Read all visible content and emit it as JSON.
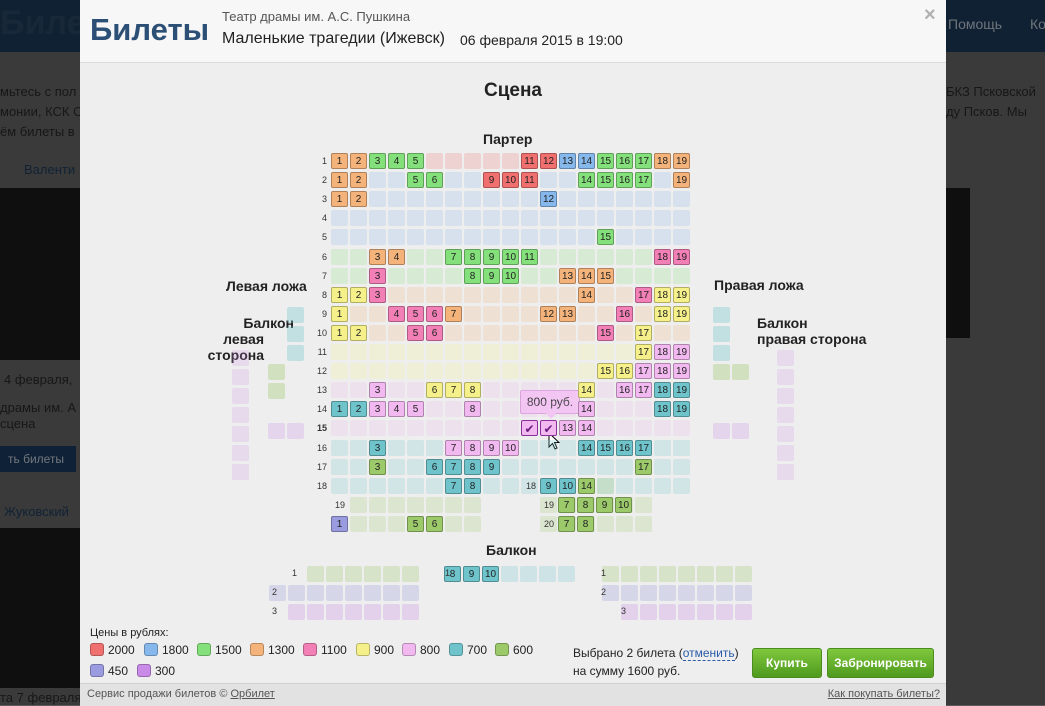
{
  "background": {
    "logo": "Билеты",
    "nav_help": "Помощь",
    "nav_more": "Ко",
    "lines": [
      "мьтесь с пол",
      "монии, КСК С",
      "ём билеты в",
      "Валенти",
      "4 февраля,",
      "драмы им. А",
      "сцена",
      "ть билеты",
      "Жуковский",
      "та 7 февраля",
      "БКЗ Псковской",
      "ду Псков. Мы"
    ]
  },
  "modal": {
    "title": "Билеты",
    "theatre": "Театр драмы им. А.С. Пушкина",
    "show": "Маленькие трагедии (Ижевск)",
    "date": "06 февраля 2015 в 19:00",
    "close": "×",
    "stage": "Сцена",
    "sections": {
      "parter": "Партер",
      "left_box": "Левая ложа",
      "right_box": "Правая ложа",
      "balcony_left_1": "Балкон",
      "balcony_left_2": "левая сторона",
      "balcony_right_1": "Балкон",
      "balcony_right_2": "правая сторона",
      "balcony": "Балкон"
    },
    "tooltip": "800 руб.",
    "legend": {
      "title": "Цены в рублях:",
      "items": [
        {
          "price": "2000",
          "color": "#f07070"
        },
        {
          "price": "1800",
          "color": "#86b8ec"
        },
        {
          "price": "1500",
          "color": "#84e07a"
        },
        {
          "price": "1300",
          "color": "#f4b37a"
        },
        {
          "price": "1100",
          "color": "#f27fb6"
        },
        {
          "price": "900",
          "color": "#f5f08a"
        },
        {
          "price": "800",
          "color": "#f2b8f0"
        },
        {
          "price": "700",
          "color": "#6fc4cc"
        },
        {
          "price": "600",
          "color": "#9cc96a"
        },
        {
          "price": "450",
          "color": "#9b9be0"
        },
        {
          "price": "300",
          "color": "#c98ae8"
        }
      ]
    },
    "selection": {
      "text_before": "Выбрано 2 билета (",
      "cancel": "отменить",
      "text_after": ")",
      "total": "на сумму 1600 руб."
    },
    "buttons": {
      "buy": "Купить",
      "book": "Забронировать"
    },
    "footer": {
      "service": "Сервис продажи билетов ©",
      "brand": "Орбилет",
      "how": "Как покупать билеты?"
    },
    "row_labels": {
      "parter": [
        "1",
        "2",
        "3",
        "4",
        "5",
        "6",
        "7",
        "8",
        "9",
        "10",
        "11",
        "12",
        "13",
        "14",
        "15",
        "16",
        "17",
        "18"
      ],
      "parter_extra": [
        "19",
        "20"
      ],
      "right_block": [
        "18",
        "19",
        "20"
      ],
      "balcony": [
        "1",
        "2",
        "3"
      ]
    },
    "seats": {
      "parter_free": [
        {
          "row": "1",
          "seat": "1",
          "price": "1300"
        },
        {
          "row": "1",
          "seat": "2",
          "price": "1300"
        },
        {
          "row": "1",
          "seat": "3",
          "price": "1500"
        },
        {
          "row": "1",
          "seat": "4",
          "price": "1500"
        },
        {
          "row": "1",
          "seat": "5",
          "price": "1500"
        },
        {
          "row": "1",
          "seat": "11",
          "price": "2000"
        },
        {
          "row": "1",
          "seat": "12",
          "price": "2000"
        },
        {
          "row": "1",
          "seat": "13",
          "price": "1800"
        },
        {
          "row": "1",
          "seat": "14",
          "price": "1800"
        },
        {
          "row": "1",
          "seat": "15",
          "price": "1500"
        },
        {
          "row": "1",
          "seat": "16",
          "price": "1500"
        },
        {
          "row": "1",
          "seat": "17",
          "price": "1500"
        },
        {
          "row": "1",
          "seat": "18",
          "price": "1300"
        },
        {
          "row": "1",
          "seat": "19",
          "price": "1300"
        },
        {
          "row": "2",
          "seat": "1",
          "price": "1300"
        },
        {
          "row": "2",
          "seat": "2",
          "price": "1300"
        },
        {
          "row": "2",
          "seat": "5",
          "price": "1500"
        },
        {
          "row": "2",
          "seat": "6",
          "price": "1500"
        },
        {
          "row": "2",
          "seat": "9",
          "price": "2000"
        },
        {
          "row": "2",
          "seat": "10",
          "price": "2000"
        },
        {
          "row": "2",
          "seat": "11",
          "price": "2000"
        },
        {
          "row": "2",
          "seat": "14",
          "price": "1500"
        },
        {
          "row": "2",
          "seat": "15",
          "price": "1500"
        },
        {
          "row": "2",
          "seat": "16",
          "price": "1500"
        },
        {
          "row": "2",
          "seat": "17",
          "price": "1500"
        },
        {
          "row": "2",
          "seat": "19",
          "price": "1300"
        },
        {
          "row": "3",
          "seat": "1",
          "price": "1300"
        },
        {
          "row": "3",
          "seat": "2",
          "price": "1300"
        },
        {
          "row": "3",
          "seat": "12",
          "price": "1800"
        },
        {
          "row": "5",
          "seat": "15",
          "price": "1500"
        },
        {
          "row": "6",
          "seat": "3",
          "price": "1300"
        },
        {
          "row": "6",
          "seat": "4",
          "price": "1300"
        },
        {
          "row": "6",
          "seat": "7",
          "price": "1500"
        },
        {
          "row": "6",
          "seat": "8",
          "price": "1500"
        },
        {
          "row": "6",
          "seat": "9",
          "price": "1500"
        },
        {
          "row": "6",
          "seat": "10",
          "price": "1500"
        },
        {
          "row": "6",
          "seat": "11",
          "price": "1500"
        },
        {
          "row": "6",
          "seat": "18",
          "price": "1100"
        },
        {
          "row": "6",
          "seat": "19",
          "price": "1100"
        },
        {
          "row": "7",
          "seat": "3",
          "price": "1100"
        },
        {
          "row": "7",
          "seat": "8",
          "price": "1500"
        },
        {
          "row": "7",
          "seat": "9",
          "price": "1500"
        },
        {
          "row": "7",
          "seat": "10",
          "price": "1500"
        },
        {
          "row": "7",
          "seat": "13",
          "price": "1300"
        },
        {
          "row": "7",
          "seat": "14",
          "price": "1300"
        },
        {
          "row": "7",
          "seat": "15",
          "price": "1300"
        },
        {
          "row": "8",
          "seat": "1",
          "price": "900"
        },
        {
          "row": "8",
          "seat": "2",
          "price": "900"
        },
        {
          "row": "8",
          "seat": "3",
          "price": "1100"
        },
        {
          "row": "8",
          "seat": "14",
          "price": "1300"
        },
        {
          "row": "8",
          "seat": "17",
          "price": "1100"
        },
        {
          "row": "8",
          "seat": "18",
          "price": "900"
        },
        {
          "row": "8",
          "seat": "19",
          "price": "900"
        },
        {
          "row": "9",
          "seat": "1",
          "price": "900"
        },
        {
          "row": "9",
          "seat": "4",
          "price": "1100"
        },
        {
          "row": "9",
          "seat": "5",
          "price": "1100"
        },
        {
          "row": "9",
          "seat": "6",
          "price": "1100"
        },
        {
          "row": "9",
          "seat": "7",
          "price": "1300"
        },
        {
          "row": "9",
          "seat": "12",
          "price": "1300"
        },
        {
          "row": "9",
          "seat": "13",
          "price": "1300"
        },
        {
          "row": "9",
          "seat": "16",
          "price": "1100"
        },
        {
          "row": "9",
          "seat": "18",
          "price": "900"
        },
        {
          "row": "9",
          "seat": "19",
          "price": "900"
        },
        {
          "row": "10",
          "seat": "1",
          "price": "900"
        },
        {
          "row": "10",
          "seat": "2",
          "price": "900"
        },
        {
          "row": "10",
          "seat": "5",
          "price": "1100"
        },
        {
          "row": "10",
          "seat": "6",
          "price": "1100"
        },
        {
          "row": "10",
          "seat": "15",
          "price": "1100"
        },
        {
          "row": "10",
          "seat": "17",
          "price": "900"
        },
        {
          "row": "11",
          "seat": "17",
          "price": "900"
        },
        {
          "row": "11",
          "seat": "18",
          "price": "800"
        },
        {
          "row": "11",
          "seat": "19",
          "price": "800"
        },
        {
          "row": "12",
          "seat": "15",
          "price": "900"
        },
        {
          "row": "12",
          "seat": "16",
          "price": "900"
        },
        {
          "row": "12",
          "seat": "17",
          "price": "800"
        },
        {
          "row": "12",
          "seat": "18",
          "price": "800"
        },
        {
          "row": "12",
          "seat": "19",
          "price": "800"
        },
        {
          "row": "13",
          "seat": "3",
          "price": "800"
        },
        {
          "row": "13",
          "seat": "6",
          "price": "900"
        },
        {
          "row": "13",
          "seat": "7",
          "price": "900"
        },
        {
          "row": "13",
          "seat": "8",
          "price": "900"
        },
        {
          "row": "13",
          "seat": "14",
          "price": "900"
        },
        {
          "row": "13",
          "seat": "16",
          "price": "800"
        },
        {
          "row": "13",
          "seat": "17",
          "price": "800"
        },
        {
          "row": "13",
          "seat": "18",
          "price": "700"
        },
        {
          "row": "13",
          "seat": "19",
          "price": "700"
        },
        {
          "row": "14",
          "seat": "1",
          "price": "700"
        },
        {
          "row": "14",
          "seat": "2",
          "price": "700"
        },
        {
          "row": "14",
          "seat": "3",
          "price": "800"
        },
        {
          "row": "14",
          "seat": "4",
          "price": "800"
        },
        {
          "row": "14",
          "seat": "5",
          "price": "800"
        },
        {
          "row": "14",
          "seat": "8",
          "price": "800"
        },
        {
          "row": "14",
          "seat": "14",
          "price": "800"
        },
        {
          "row": "14",
          "seat": "18",
          "price": "700"
        },
        {
          "row": "14",
          "seat": "19",
          "price": "700"
        },
        {
          "row": "15",
          "seat": "13",
          "price": "800"
        },
        {
          "row": "15",
          "seat": "14",
          "price": "800"
        },
        {
          "row": "16",
          "seat": "3",
          "price": "700"
        },
        {
          "row": "16",
          "seat": "7",
          "price": "800"
        },
        {
          "row": "16",
          "seat": "8",
          "price": "800"
        },
        {
          "row": "16",
          "seat": "9",
          "price": "800"
        },
        {
          "row": "16",
          "seat": "10",
          "price": "800"
        },
        {
          "row": "16",
          "seat": "14",
          "price": "700"
        },
        {
          "row": "16",
          "seat": "15",
          "price": "700"
        },
        {
          "row": "16",
          "seat": "16",
          "price": "700"
        },
        {
          "row": "16",
          "seat": "17",
          "price": "700"
        },
        {
          "row": "17",
          "seat": "3",
          "price": "600"
        },
        {
          "row": "17",
          "seat": "6",
          "price": "700"
        },
        {
          "row": "17",
          "seat": "7",
          "price": "700"
        },
        {
          "row": "17",
          "seat": "8",
          "price": "700"
        },
        {
          "row": "17",
          "seat": "9",
          "price": "700"
        },
        {
          "row": "17",
          "seat": "17",
          "price": "600"
        },
        {
          "row": "18",
          "seat": "7",
          "price": "700"
        },
        {
          "row": "18",
          "seat": "8",
          "price": "700"
        },
        {
          "row": "18",
          "seat": "13",
          "price": "600"
        },
        {
          "row": "18",
          "seat": "14",
          "price": "600"
        },
        {
          "row": "20",
          "seat": "1",
          "price": "450"
        },
        {
          "row": "20",
          "seat": "5",
          "price": "600"
        },
        {
          "row": "20",
          "seat": "6",
          "price": "600"
        }
      ],
      "right_block_free": [
        {
          "row": "18",
          "seat": "9",
          "price": "700"
        },
        {
          "row": "18",
          "seat": "10",
          "price": "700"
        },
        {
          "row": "19",
          "seat": "7",
          "price": "600"
        },
        {
          "row": "19",
          "seat": "8",
          "price": "600"
        },
        {
          "row": "19",
          "seat": "9",
          "price": "600"
        },
        {
          "row": "19",
          "seat": "10",
          "price": "600"
        },
        {
          "row": "20",
          "seat": "7",
          "price": "600"
        },
        {
          "row": "20",
          "seat": "8",
          "price": "600"
        }
      ],
      "balcony_free": [
        {
          "row": "1",
          "seat": "8",
          "price": "700"
        },
        {
          "row": "1",
          "seat": "9",
          "price": "700"
        },
        {
          "row": "1",
          "seat": "10",
          "price": "700"
        }
      ],
      "selected": [
        {
          "row": "15",
          "seat": "11",
          "price": "800",
          "mark": "✔"
        },
        {
          "row": "15",
          "seat": "12",
          "price": "800",
          "mark": "✔"
        }
      ]
    }
  }
}
